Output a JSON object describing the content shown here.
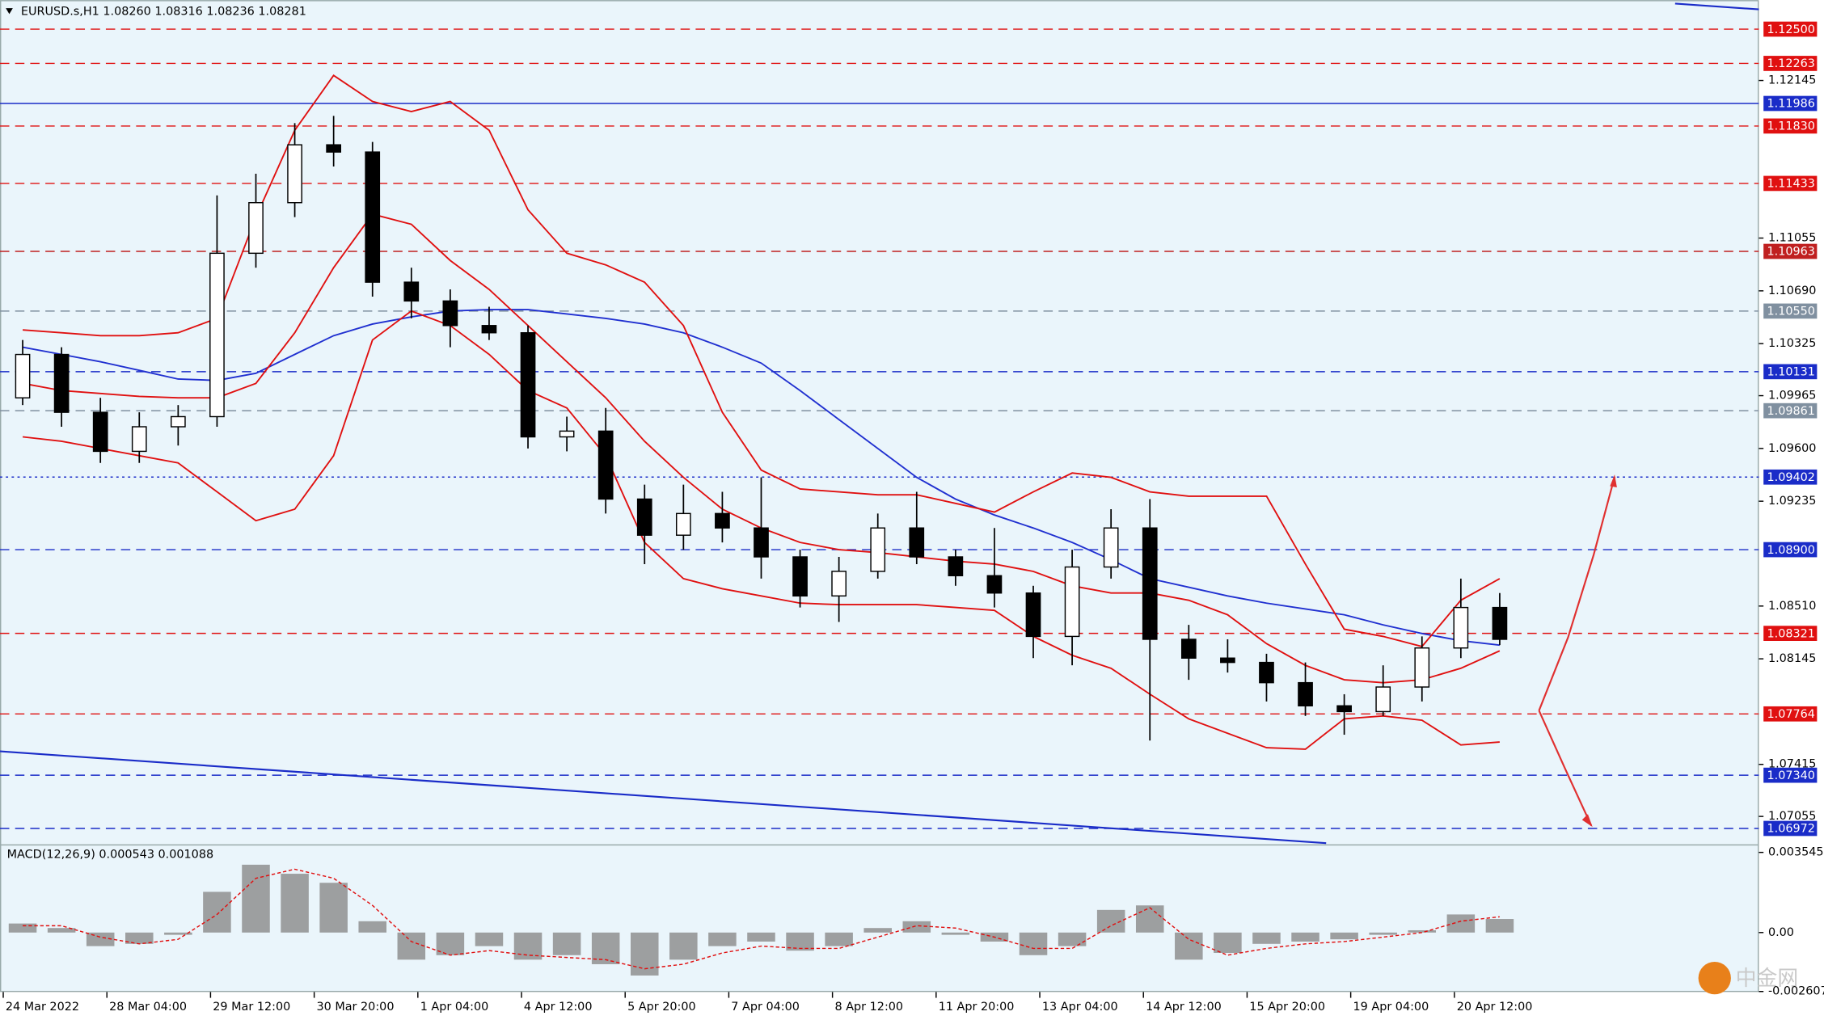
{
  "chart_data": [
    {
      "type": "candlestick",
      "title": "EURUSD.s,H1  1.08260 1.08316 1.08236 1.08281",
      "x": [
        6,
        18,
        30,
        42,
        54,
        66,
        78,
        90,
        102,
        114,
        126,
        138,
        150,
        162,
        174,
        186,
        198,
        210,
        222,
        234,
        246,
        258,
        270,
        282,
        294,
        306,
        318,
        330,
        342,
        354,
        366,
        378,
        390,
        402,
        414,
        426,
        438,
        450,
        462
      ],
      "open": [
        1.0995,
        1.1025,
        1.0985,
        1.0958,
        1.0975,
        1.0982,
        1.1095,
        1.113,
        1.117,
        1.1165,
        1.1075,
        1.1062,
        1.1045,
        1.104,
        1.0968,
        1.0972,
        1.0925,
        1.09,
        1.0915,
        1.0905,
        1.0885,
        1.0858,
        1.0875,
        1.0905,
        1.0885,
        1.0872,
        1.086,
        1.083,
        1.0878,
        1.0905,
        1.0828,
        1.0815,
        1.0812,
        1.0798,
        1.0782,
        1.0778,
        1.0795,
        1.0822,
        1.085
      ],
      "high": [
        1.1035,
        1.103,
        1.0995,
        1.0985,
        1.099,
        1.1135,
        1.115,
        1.1185,
        1.119,
        1.1172,
        1.1085,
        1.107,
        1.1058,
        1.1045,
        1.0982,
        1.0988,
        1.0935,
        1.0935,
        1.093,
        1.094,
        1.089,
        1.0885,
        1.0915,
        1.093,
        1.089,
        1.0905,
        1.0865,
        1.089,
        1.0918,
        1.0925,
        1.0838,
        1.0828,
        1.0818,
        1.0812,
        1.079,
        1.081,
        1.083,
        1.087,
        1.086
      ],
      "low": [
        1.099,
        1.0975,
        1.095,
        1.095,
        1.0962,
        1.0975,
        1.1085,
        1.112,
        1.1155,
        1.1065,
        1.105,
        1.103,
        1.1035,
        1.096,
        1.0958,
        1.0915,
        1.088,
        1.089,
        1.0895,
        1.087,
        1.085,
        1.084,
        1.087,
        1.088,
        1.0865,
        1.085,
        1.0815,
        1.081,
        1.087,
        1.0758,
        1.08,
        1.0805,
        1.0785,
        1.0775,
        1.0762,
        1.0775,
        1.0785,
        1.0815,
        1.0824
      ],
      "close": [
        1.1025,
        1.0985,
        1.0958,
        1.0975,
        1.0982,
        1.1095,
        1.113,
        1.117,
        1.1165,
        1.1075,
        1.1062,
        1.1045,
        1.104,
        1.0968,
        1.0972,
        1.0925,
        1.09,
        1.0915,
        1.0905,
        1.0885,
        1.0858,
        1.0875,
        1.0905,
        1.0885,
        1.0872,
        1.086,
        1.083,
        1.0878,
        1.0905,
        1.0828,
        1.0815,
        1.0812,
        1.0798,
        1.0782,
        1.0778,
        1.0795,
        1.0822,
        1.085,
        1.0828
      ],
      "overlays": [
        {
          "color": "#2030d0",
          "values": [
            1.103,
            1.1025,
            1.102,
            1.1014,
            1.1008,
            1.1007,
            1.1012,
            1.1025,
            1.1038,
            1.1046,
            1.1051,
            1.1055,
            1.1056,
            1.1056,
            1.1053,
            1.105,
            1.1046,
            1.104,
            1.103,
            1.1019,
            1.1,
            1.098,
            1.096,
            1.094,
            1.0925,
            1.0914,
            1.0905,
            1.0895,
            1.0883,
            1.087,
            1.0864,
            1.0858,
            1.0853,
            1.0849,
            1.0845,
            1.0838,
            1.0832,
            1.0827,
            1.0824
          ]
        },
        {
          "color": "#e01010",
          "values": [
            1.1042,
            1.104,
            1.1038,
            1.1038,
            1.104,
            1.105,
            1.112,
            1.118,
            1.1218,
            1.12,
            1.1193,
            1.12,
            1.118,
            1.1125,
            1.1095,
            1.1087,
            1.1075,
            1.1045,
            1.0985,
            1.0945,
            1.0932,
            1.093,
            1.0928,
            1.0928,
            1.0922,
            1.0916,
            1.093,
            1.0943,
            1.094,
            1.093,
            1.0927,
            1.0927,
            1.0927,
            1.088,
            1.0835,
            1.083,
            1.0823,
            1.0855,
            1.087
          ]
        },
        {
          "color": "#e01010",
          "values": [
            1.1005,
            1.1,
            1.0998,
            1.0996,
            1.0995,
            1.0995,
            1.1005,
            1.104,
            1.1085,
            1.1122,
            1.1115,
            1.109,
            1.107,
            1.1045,
            1.102,
            1.0995,
            1.0965,
            1.094,
            1.0918,
            1.0905,
            1.0895,
            1.089,
            1.0888,
            1.0885,
            1.0882,
            1.088,
            1.0875,
            1.0865,
            1.086,
            1.086,
            1.0855,
            1.0845,
            1.0825,
            1.081,
            1.08,
            1.0798,
            1.08,
            1.0808,
            1.082
          ]
        },
        {
          "color": "#e01010",
          "values": [
            1.0968,
            1.0965,
            1.096,
            1.0955,
            1.095,
            1.093,
            1.091,
            1.0918,
            1.0955,
            1.1035,
            1.1055,
            1.1045,
            1.1025,
            1.1,
            1.0988,
            1.0955,
            1.0895,
            1.087,
            1.0863,
            1.0858,
            1.0853,
            1.0852,
            1.0852,
            1.0852,
            1.085,
            1.0848,
            1.083,
            1.0817,
            1.0808,
            1.079,
            1.0773,
            1.0763,
            1.0753,
            1.0752,
            1.0773,
            1.0775,
            1.0772,
            1.0755,
            1.0757
          ]
        }
      ],
      "levels": [
        {
          "value": 1.125,
          "label": "1.12500",
          "color": "#e01010",
          "style": "dashed"
        },
        {
          "value": 1.12263,
          "label": "1.12263",
          "color": "#e01010",
          "style": "dashed"
        },
        {
          "value": 1.11986,
          "label": "1.11986",
          "color": "#1a2cc8",
          "style": "solid"
        },
        {
          "value": 1.1183,
          "label": "1.11830",
          "color": "#e01010",
          "style": "dashed"
        },
        {
          "value": 1.11433,
          "label": "1.11433",
          "color": "#e01010",
          "style": "dashed"
        },
        {
          "value": 1.10963,
          "label": "1.10963",
          "color": "#c02020",
          "style": "dashed"
        },
        {
          "value": 1.1055,
          "label": "1.10550",
          "color": "#8090a0",
          "style": "dashed"
        },
        {
          "value": 1.10131,
          "label": "1.10131",
          "color": "#1a2cc8",
          "style": "dashed"
        },
        {
          "value": 1.09861,
          "label": "1.09861",
          "color": "#8090a0",
          "style": "dashed"
        },
        {
          "value": 1.09402,
          "label": "1.09402",
          "color": "#1a2cc8",
          "style": "dotted"
        },
        {
          "value": 1.089,
          "label": "1.08900",
          "color": "#1a2cc8",
          "style": "dashed"
        },
        {
          "value": 1.08321,
          "label": "1.08321",
          "color": "#e01010",
          "style": "dashed"
        },
        {
          "value": 1.07764,
          "label": "1.07764",
          "color": "#e01010",
          "style": "dashed"
        },
        {
          "value": 1.0734,
          "label": "1.07340",
          "color": "#1a2cc8",
          "style": "dashed"
        },
        {
          "value": 1.06972,
          "label": "1.06972",
          "color": "#1a2cc8",
          "style": "dashed"
        }
      ],
      "xlim": [
        -1,
        542
      ],
      "ylim": [
        1.06862,
        1.12701
      ],
      "xticks": [
        {
          "value": 0,
          "label": "24 Mar 2022"
        },
        {
          "value": 32,
          "label": "28 Mar 04:00"
        },
        {
          "value": 64,
          "label": "29 Mar 12:00"
        },
        {
          "value": 96,
          "label": "30 Mar 20:00"
        },
        {
          "value": 128,
          "label": "1 Apr 04:00"
        },
        {
          "value": 160,
          "label": "4 Apr 12:00"
        },
        {
          "value": 192,
          "label": "5 Apr 20:00"
        },
        {
          "value": 224,
          "label": "7 Apr 04:00"
        },
        {
          "value": 256,
          "label": "8 Apr 12:00"
        },
        {
          "value": 288,
          "label": "11 Apr 20:00"
        },
        {
          "value": 320,
          "label": "13 Apr 04:00"
        },
        {
          "value": 352,
          "label": "14 Apr 12:00"
        },
        {
          "value": 384,
          "label": "15 Apr 20:00"
        },
        {
          "value": 416,
          "label": "19 Apr 04:00"
        },
        {
          "value": 448,
          "label": "20 Apr 12:00"
        }
      ],
      "yticks": [
        1.12145,
        1.11055,
        {
          "value": 1.1069,
          "label": "1.10690"
        },
        1.10325,
        1.09965,
        {
          "value": 1.096,
          "label": "1.09600"
        },
        1.09235,
        {
          "value": 1.0851,
          "label": "1.08510"
        },
        1.08145,
        1.07415,
        1.07055
      ]
    },
    {
      "type": "macd",
      "title": "MACD(12,26,9) 0.000543 0.001088",
      "values": [
        0.0004,
        0.0002,
        -0.0006,
        -0.0005,
        -0.0001,
        0.0018,
        0.003,
        0.0026,
        0.0022,
        0.0005,
        -0.0012,
        -0.001,
        -0.0006,
        -0.0012,
        -0.001,
        -0.0014,
        -0.0019,
        -0.0012,
        -0.0006,
        -0.0004,
        -0.0008,
        -0.0006,
        0.0002,
        0.0005,
        -0.0001,
        -0.0004,
        -0.001,
        -0.0006,
        0.001,
        0.0012,
        -0.0012,
        -0.0009,
        -0.0005,
        -0.0004,
        -0.0003,
        -0.0001,
        0.0001,
        0.0008,
        0.0006
      ],
      "signal": [
        0.0003,
        0.0003,
        -0.0002,
        -0.0005,
        -0.0003,
        0.0008,
        0.0024,
        0.0028,
        0.0024,
        0.0012,
        -0.0004,
        -0.001,
        -0.0008,
        -0.001,
        -0.0011,
        -0.0012,
        -0.0016,
        -0.0014,
        -0.0009,
        -0.0006,
        -0.0007,
        -0.0007,
        -0.0002,
        0.0003,
        0.0002,
        -0.0002,
        -0.0007,
        -0.0007,
        0.0003,
        0.0011,
        -0.0003,
        -0.001,
        -0.0007,
        -0.0005,
        -0.0004,
        -0.0002,
        0,
        0.0005,
        0.0007
      ],
      "color": "#8a8a8a",
      "signal_color": "#e01010",
      "ylim": [
        -0.00263,
        0.00385
      ],
      "yticks": [
        0.003545,
        {
          "value": 0,
          "label": "0.00"
        },
        -0.002607
      ]
    }
  ],
  "watermark": "中金网"
}
